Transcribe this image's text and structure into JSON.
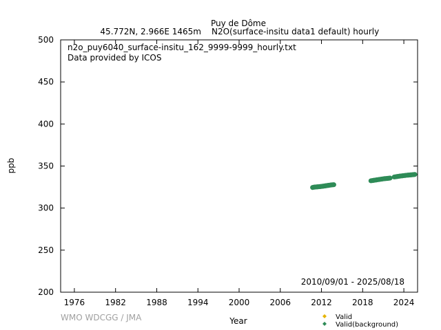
{
  "header": {
    "station": "Puy de Dôme",
    "location": "45.772N, 2.966E 1465m",
    "dataset": "N2O(surface-insitu data1 default) hourly"
  },
  "credit": "WMO WDCGG / JMA",
  "chart_data": {
    "type": "scatter",
    "xlabel": "Year",
    "ylabel": "ppb",
    "xlim": [
      1974,
      2026
    ],
    "ylim": [
      200,
      500
    ],
    "xticks": [
      "1976",
      "1982",
      "1988",
      "1994",
      "2000",
      "2006",
      "2012",
      "2018",
      "2024"
    ],
    "yticks": [
      "200",
      "250",
      "300",
      "350",
      "400",
      "450",
      "500"
    ],
    "annotations": {
      "filename": "n2o_puy6040_surface-insitu_162_9999-9999_hourly.txt",
      "provider": "Data provided by ICOS",
      "date_range": "2010/09/01 - 2025/08/18"
    },
    "legend": {
      "placement": "bottom-right",
      "entries": [
        {
          "label": "Valid",
          "color": "#e6b400",
          "marker": "diamond"
        },
        {
          "label": "Valid(background)",
          "color": "#2e8b57",
          "marker": "diamond"
        }
      ]
    },
    "series": [
      {
        "name": "Valid(background)",
        "color": "#2e8b57",
        "segments": [
          {
            "x": [
              2010.7,
              2011.0,
              2011.4,
              2011.8,
              2012.2,
              2012.6,
              2013.0,
              2013.4,
              2013.8
            ],
            "y": [
              324.5,
              325.0,
              325.3,
              325.6,
              326.0,
              326.5,
              327.0,
              327.5,
              327.8
            ]
          },
          {
            "x": [
              2019.2,
              2019.6,
              2020.0,
              2020.4,
              2020.8,
              2021.2,
              2021.6,
              2022.0
            ],
            "y": [
              332.5,
              333.0,
              333.5,
              334.0,
              334.5,
              335.0,
              335.3,
              335.7
            ]
          },
          {
            "x": [
              2022.6,
              2023.0,
              2023.4,
              2023.8,
              2024.2,
              2024.6,
              2025.0,
              2025.4,
              2025.6
            ],
            "y": [
              337.0,
              337.5,
              338.0,
              338.4,
              338.8,
              339.2,
              339.5,
              339.8,
              340.0
            ]
          }
        ]
      }
    ]
  }
}
